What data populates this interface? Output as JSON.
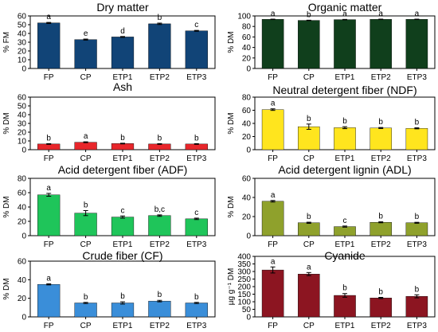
{
  "x_categories": [
    "FP",
    "CP",
    "ETP1",
    "ETP2",
    "ETP3"
  ],
  "chart_data": [
    {
      "type": "bar",
      "title": "Dry matter",
      "ylabel": "% FM",
      "ylim": [
        0,
        60
      ],
      "yticks": [
        "0",
        "10",
        "20",
        "30",
        "40",
        "50",
        "60"
      ],
      "color": "#114477",
      "categories": [
        "FP",
        "CP",
        "ETP1",
        "ETP2",
        "ETP3"
      ],
      "values": [
        52,
        33,
        36,
        51,
        43
      ],
      "errors": [
        0.6,
        0.6,
        0.5,
        0.8,
        0.5
      ],
      "letters": [
        "a",
        "e",
        "d",
        "b",
        "c"
      ]
    },
    {
      "type": "bar",
      "title": "Organic matter",
      "ylabel": "% DM",
      "ylim": [
        0,
        100
      ],
      "yticks": [
        "0",
        "20",
        "40",
        "60",
        "80",
        "100"
      ],
      "color": "#103F1C",
      "categories": [
        "FP",
        "CP",
        "ETP1",
        "ETP2",
        "ETP3"
      ],
      "values": [
        93.5,
        91.5,
        93,
        93.5,
        93.5
      ],
      "errors": [
        0.4,
        0.4,
        0.4,
        0.4,
        0.4
      ],
      "letters": [
        "a",
        "b",
        "a",
        "a",
        "a"
      ]
    },
    {
      "type": "bar",
      "title": "Ash",
      "ylabel": "% DM",
      "ylim": [
        0,
        60
      ],
      "yticks": [
        "0",
        "10",
        "20",
        "30",
        "40",
        "50",
        "60"
      ],
      "color": "#E8262B",
      "categories": [
        "FP",
        "CP",
        "ETP1",
        "ETP2",
        "ETP3"
      ],
      "values": [
        6.5,
        8.5,
        7,
        6.5,
        6.5
      ],
      "errors": [
        0.4,
        0.5,
        0.4,
        0.4,
        0.4
      ],
      "letters": [
        "b",
        "a",
        "b",
        "b",
        "b"
      ]
    },
    {
      "type": "bar",
      "title": "Neutral detergent fiber (NDF)",
      "ylabel": "% DM",
      "ylim": [
        0,
        80
      ],
      "yticks": [
        "0",
        "20",
        "40",
        "60",
        "80"
      ],
      "color": "#FFE51E",
      "categories": [
        "FP",
        "CP",
        "ETP1",
        "ETP2",
        "ETP3"
      ],
      "values": [
        61,
        35,
        33.5,
        33,
        32.5
      ],
      "errors": [
        1.2,
        4,
        1.5,
        0.8,
        0.8
      ],
      "letters": [
        "a",
        "b",
        "b",
        "b",
        "b"
      ]
    },
    {
      "type": "bar",
      "title": "Acid detergent fiber (ADF)",
      "ylabel": "% DM",
      "ylim": [
        0,
        80
      ],
      "yticks": [
        "0",
        "20",
        "40",
        "60",
        "80"
      ],
      "color": "#1FC55A",
      "categories": [
        "FP",
        "CP",
        "ETP1",
        "ETP2",
        "ETP3"
      ],
      "values": [
        57,
        31.5,
        26,
        28,
        23.5
      ],
      "errors": [
        2,
        3.5,
        1.5,
        1,
        1
      ],
      "letters": [
        "a",
        "b",
        "c",
        "b,c",
        "c"
      ]
    },
    {
      "type": "bar",
      "title": "Acid detergent lignin (ADL)",
      "ylabel": "% DM",
      "ylim": [
        0,
        60
      ],
      "yticks": [
        "0",
        "20",
        "40",
        "60"
      ],
      "color": "#8FA12C",
      "categories": [
        "FP",
        "CP",
        "ETP1",
        "ETP2",
        "ETP3"
      ],
      "values": [
        36,
        13.5,
        9.5,
        14,
        13.5
      ],
      "errors": [
        0.8,
        0.6,
        0.6,
        0.5,
        0.5
      ],
      "letters": [
        "a",
        "b",
        "c",
        "b",
        "b"
      ]
    },
    {
      "type": "bar",
      "title": "Crude fiber (CF)",
      "ylabel": "% DM",
      "ylim": [
        0,
        60
      ],
      "yticks": [
        "0",
        "20",
        "40",
        "60"
      ],
      "color": "#3A8ED9",
      "categories": [
        "FP",
        "CP",
        "ETP1",
        "ETP2",
        "ETP3"
      ],
      "values": [
        35,
        15,
        15,
        17,
        15
      ],
      "errors": [
        0.6,
        0.6,
        1.2,
        0.8,
        0.6
      ],
      "letters": [
        "a",
        "b",
        "b",
        "b",
        "b"
      ]
    },
    {
      "type": "bar",
      "title": "Cyanide",
      "ylabel": "µg g⁻¹ DM",
      "ylim": [
        0,
        400
      ],
      "yticks": [
        "0",
        "50",
        "100",
        "150",
        "200",
        "250",
        "300",
        "350",
        "400"
      ],
      "color": "#8C1521",
      "categories": [
        "FP",
        "CP",
        "ETP1",
        "ETP2",
        "ETP3"
      ],
      "values": [
        310,
        283,
        142,
        125,
        136
      ],
      "errors": [
        20,
        10,
        12,
        4,
        10
      ],
      "letters": [
        "a",
        "a",
        "b",
        "b",
        "b"
      ]
    }
  ]
}
